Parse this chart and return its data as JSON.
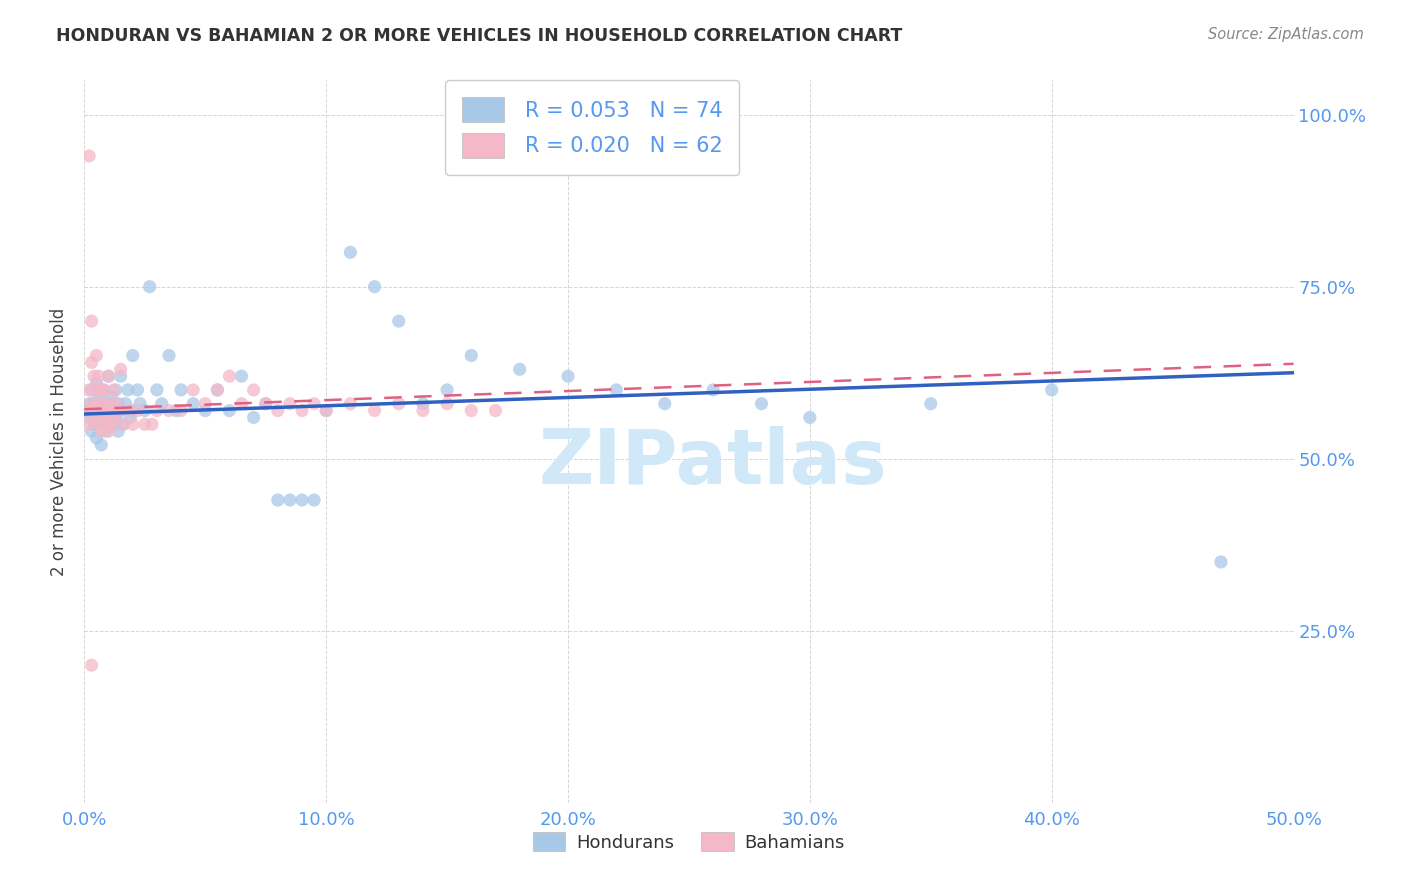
{
  "title": "HONDURAN VS BAHAMIAN 2 OR MORE VEHICLES IN HOUSEHOLD CORRELATION CHART",
  "source": "Source: ZipAtlas.com",
  "ylabel_label": "2 or more Vehicles in Household",
  "legend_label1": "Hondurans",
  "legend_label2": "Bahamians",
  "R1": "0.053",
  "N1": "74",
  "R2": "0.020",
  "N2": "62",
  "color_blue": "#a8c8e8",
  "color_pink": "#f4b8c8",
  "color_blue_line": "#3060c0",
  "color_pink_line": "#e06080",
  "color_title": "#333333",
  "color_axis_labels": "#5599ee",
  "color_watermark": "#d0e8f8",
  "watermark_text": "ZIPatlas",
  "background_color": "#ffffff",
  "xlim": [
    0.0,
    0.5
  ],
  "ylim": [
    0.0,
    1.05
  ],
  "x_tick_vals": [
    0.0,
    0.1,
    0.2,
    0.3,
    0.4,
    0.5
  ],
  "y_tick_vals": [
    0.25,
    0.5,
    0.75,
    1.0
  ],
  "honduran_x": [
    0.001,
    0.002,
    0.002,
    0.003,
    0.003,
    0.004,
    0.004,
    0.005,
    0.005,
    0.005,
    0.006,
    0.006,
    0.007,
    0.007,
    0.007,
    0.008,
    0.008,
    0.009,
    0.009,
    0.01,
    0.01,
    0.011,
    0.011,
    0.012,
    0.012,
    0.013,
    0.013,
    0.014,
    0.014,
    0.015,
    0.015,
    0.016,
    0.017,
    0.018,
    0.019,
    0.02,
    0.02,
    0.022,
    0.023,
    0.025,
    0.027,
    0.03,
    0.032,
    0.035,
    0.038,
    0.04,
    0.045,
    0.05,
    0.055,
    0.06,
    0.065,
    0.07,
    0.075,
    0.08,
    0.085,
    0.09,
    0.095,
    0.1,
    0.11,
    0.12,
    0.13,
    0.14,
    0.15,
    0.16,
    0.18,
    0.2,
    0.22,
    0.24,
    0.26,
    0.28,
    0.3,
    0.35,
    0.4,
    0.47
  ],
  "honduran_y": [
    0.57,
    0.56,
    0.58,
    0.54,
    0.6,
    0.55,
    0.58,
    0.53,
    0.57,
    0.61,
    0.55,
    0.59,
    0.56,
    0.58,
    0.52,
    0.55,
    0.6,
    0.57,
    0.54,
    0.58,
    0.62,
    0.56,
    0.59,
    0.55,
    0.57,
    0.56,
    0.6,
    0.58,
    0.54,
    0.57,
    0.62,
    0.55,
    0.58,
    0.6,
    0.56,
    0.57,
    0.65,
    0.6,
    0.58,
    0.57,
    0.75,
    0.6,
    0.58,
    0.65,
    0.57,
    0.6,
    0.58,
    0.57,
    0.6,
    0.57,
    0.62,
    0.56,
    0.58,
    0.44,
    0.44,
    0.44,
    0.44,
    0.57,
    0.8,
    0.75,
    0.7,
    0.58,
    0.6,
    0.65,
    0.63,
    0.62,
    0.6,
    0.58,
    0.6,
    0.58,
    0.56,
    0.58,
    0.6,
    0.35
  ],
  "bahamian_x": [
    0.001,
    0.002,
    0.002,
    0.003,
    0.003,
    0.003,
    0.004,
    0.004,
    0.005,
    0.005,
    0.005,
    0.006,
    0.006,
    0.006,
    0.007,
    0.007,
    0.007,
    0.008,
    0.008,
    0.008,
    0.009,
    0.009,
    0.01,
    0.01,
    0.01,
    0.011,
    0.011,
    0.012,
    0.012,
    0.013,
    0.014,
    0.015,
    0.016,
    0.018,
    0.02,
    0.022,
    0.025,
    0.028,
    0.03,
    0.035,
    0.04,
    0.045,
    0.05,
    0.055,
    0.06,
    0.065,
    0.07,
    0.075,
    0.08,
    0.085,
    0.09,
    0.095,
    0.1,
    0.11,
    0.12,
    0.13,
    0.14,
    0.15,
    0.16,
    0.17,
    0.002,
    0.003
  ],
  "bahamian_y": [
    0.57,
    0.55,
    0.6,
    0.58,
    0.64,
    0.7,
    0.57,
    0.62,
    0.56,
    0.6,
    0.65,
    0.58,
    0.55,
    0.62,
    0.57,
    0.6,
    0.54,
    0.56,
    0.6,
    0.58,
    0.55,
    0.57,
    0.54,
    0.58,
    0.62,
    0.55,
    0.57,
    0.56,
    0.6,
    0.58,
    0.57,
    0.63,
    0.55,
    0.57,
    0.55,
    0.57,
    0.55,
    0.55,
    0.57,
    0.57,
    0.57,
    0.6,
    0.58,
    0.6,
    0.62,
    0.58,
    0.6,
    0.58,
    0.57,
    0.58,
    0.57,
    0.58,
    0.57,
    0.58,
    0.57,
    0.58,
    0.57,
    0.58,
    0.57,
    0.57,
    0.94,
    0.2
  ]
}
